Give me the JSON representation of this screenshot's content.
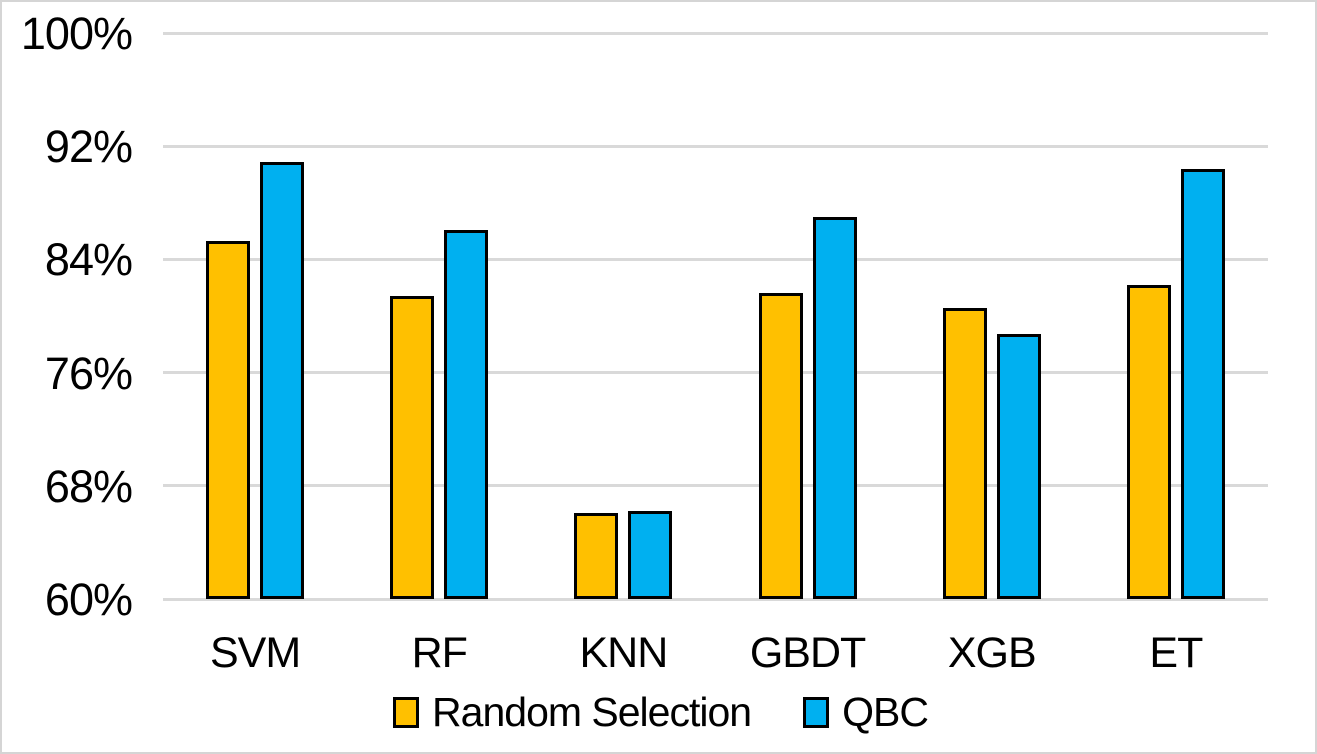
{
  "chart_data": {
    "type": "bar",
    "title": "",
    "categories": [
      "SVM",
      "RF",
      "KNN",
      "GBDT",
      "XGB",
      "ET"
    ],
    "series": [
      {
        "name": "Random Selection",
        "color": "#FFC000",
        "values": [
          85.3,
          81.4,
          66.1,
          81.6,
          80.6,
          82.2
        ]
      },
      {
        "name": "QBC",
        "color": "#00B0F0",
        "values": [
          90.9,
          86.1,
          66.2,
          87.0,
          78.7,
          90.4
        ]
      }
    ],
    "ylabel": "",
    "xlabel": "",
    "ylim": [
      60,
      100
    ],
    "yticks": [
      60,
      68,
      76,
      84,
      92,
      100
    ],
    "ytick_labels": [
      "60%",
      "68%",
      "76%",
      "84%",
      "92%",
      "100%"
    ],
    "grid": true,
    "gridline_color": "#D9D9D9",
    "bar_border_color": "#000000",
    "background_color": "#FFFFFF",
    "legend_position": "bottom"
  }
}
